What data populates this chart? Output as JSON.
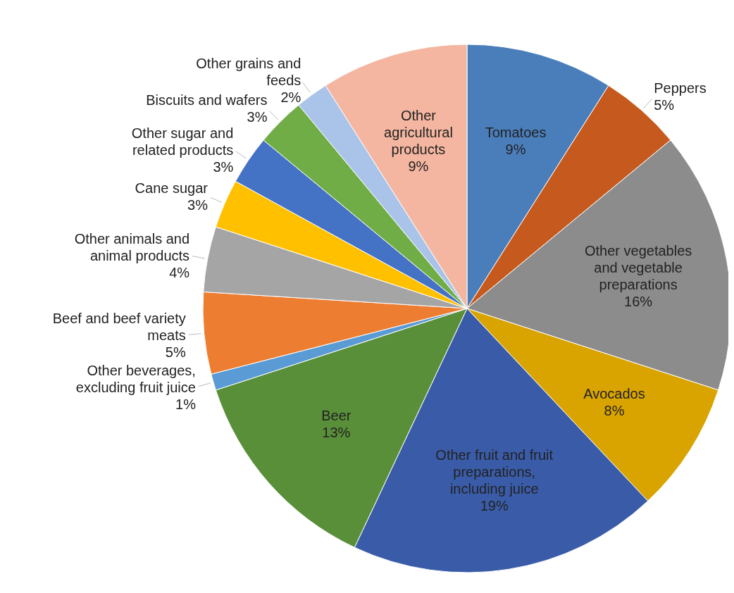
{
  "chart_data": {
    "type": "pie",
    "categories": [
      "Tomatoes",
      "Peppers",
      "Other vegetables and vegetable preparations",
      "Avocados",
      "Other fruit and fruit preparations, including juice",
      "Beer",
      "Other beverages, excluding fruit juice",
      "Beef and beef variety meats",
      "Other animals and animal products",
      "Cane sugar",
      "Other sugar and related products",
      "Biscuits and wafers",
      "Other grains and feeds",
      "Other agricultural products"
    ],
    "values": [
      9,
      5,
      16,
      8,
      19,
      13,
      1,
      5,
      4,
      3,
      3,
      3,
      2,
      9
    ],
    "value_labels": [
      "9%",
      "5%",
      "16%",
      "8%",
      "19%",
      "13%",
      "1%",
      "5%",
      "4%",
      "3%",
      "3%",
      "3%",
      "2%",
      "9%"
    ],
    "colors": [
      "#4a7ebb",
      "#c65a1e",
      "#8c8c8c",
      "#d9a300",
      "#3a5ca8",
      "#5a8f3a",
      "#5b9bd5",
      "#ed7d31",
      "#a5a5a5",
      "#ffc000",
      "#4472c4",
      "#70ad47",
      "#a9c4e8",
      "#f4b6a0"
    ]
  }
}
